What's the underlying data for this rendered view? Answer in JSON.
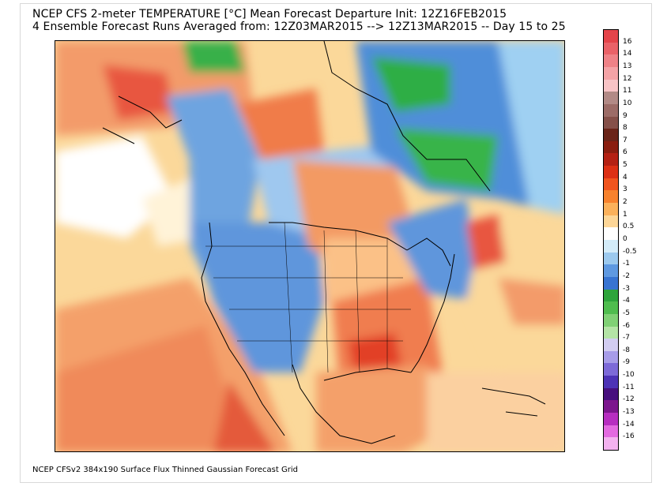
{
  "title_line1": "NCEP CFS 2-meter TEMPERATURE [°C] Mean Forecast Departure Init: 12Z16FEB2015",
  "title_line2": "4 Ensemble Forecast Runs Averaged from: 12Z03MAR2015 --> 12Z13MAR2015 -- Day 15 to 25",
  "footer": "NCEP CFSv2 384x190 Surface Flux Thinned Gaussian Forecast Grid",
  "colorbar": {
    "unit": "°C",
    "labels": [
      "16",
      "14",
      "13",
      "12",
      "11",
      "10",
      "9",
      "8",
      "7",
      "6",
      "5",
      "4",
      "3",
      "2",
      "1",
      "0.5",
      "0",
      "-0.5",
      "-1",
      "-2",
      "-3",
      "-4",
      "-5",
      "-6",
      "-7",
      "-8",
      "-9",
      "-10",
      "-11",
      "-12",
      "-13",
      "-14",
      "-16"
    ],
    "colors": [
      "#e4444a",
      "#ea6268",
      "#ef8287",
      "#f4a3a6",
      "#f8c4c6",
      "#b28a86",
      "#9c6c67",
      "#855049",
      "#6a2419",
      "#8a1e10",
      "#b42114",
      "#dc3015",
      "#f0541e",
      "#f7822e",
      "#fbb15b",
      "#fdd697",
      "#ffffff",
      "#d4ecf9",
      "#9cc9ee",
      "#5f99e1",
      "#3874d2",
      "#2ea43b",
      "#4fbd4e",
      "#80d175",
      "#b4e4a6",
      "#d2cdf1",
      "#a79ce8",
      "#7d6ad8",
      "#4d33b6",
      "#47107e",
      "#7c168d",
      "#b72ec0",
      "#e36ae0",
      "#f3b2ef"
    ]
  },
  "map": {
    "region": "North America",
    "legend_colors": {
      "warm_strong": "#e4402a",
      "warm_mod": "#f18a46",
      "warm_light": "#fbd89a",
      "neutral": "#ffffff",
      "cool_light": "#a9d0f2",
      "cool_mod": "#4f8ed9",
      "cold": "#2f9e3a"
    }
  }
}
